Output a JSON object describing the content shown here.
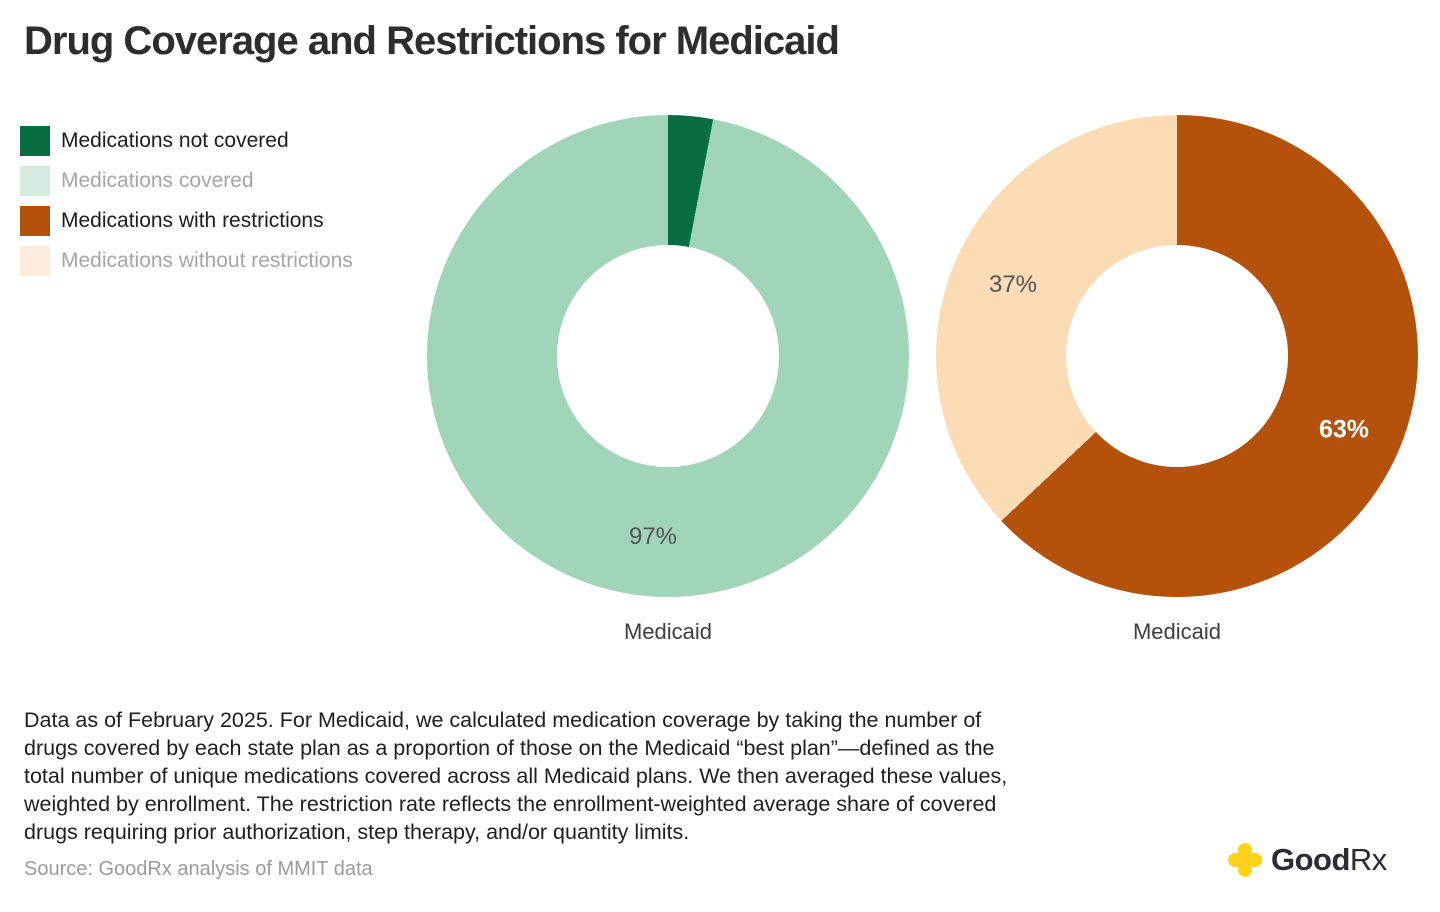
{
  "title": "Drug Coverage and Restrictions for Medicaid",
  "legend": {
    "items": [
      {
        "label": "Medications not covered",
        "swatch": "#086e41",
        "muted": false
      },
      {
        "label": "Medications covered",
        "swatch": "#d6ebdf",
        "muted": true
      },
      {
        "label": "Medications with restrictions",
        "swatch": "#b4510b",
        "muted": false
      },
      {
        "label": "Medications without restrictions",
        "swatch": "#fcecdc",
        "muted": true
      }
    ]
  },
  "chart_data": [
    {
      "type": "pie",
      "subtype": "donut",
      "axis_label": "Medicaid",
      "start_angle_deg": 0,
      "direction": "clockwise",
      "slices": [
        {
          "name": "Medications not covered",
          "value": 3,
          "color": "#086e41",
          "label": ""
        },
        {
          "name": "Medications covered",
          "value": 97,
          "color": "#a1d5ba",
          "label": "97%"
        }
      ]
    },
    {
      "type": "pie",
      "subtype": "donut",
      "axis_label": "Medicaid",
      "start_angle_deg": 0,
      "direction": "clockwise",
      "slices": [
        {
          "name": "Medications with restrictions",
          "value": 63,
          "color": "#b4510b",
          "label": "63%"
        },
        {
          "name": "Medications without restrictions",
          "value": 37,
          "color": "#fbdcb5",
          "label": "37%"
        }
      ]
    }
  ],
  "footnote": {
    "lines": [
      "Data as of February 2025. For Medicaid, we calculated medication coverage by taking the number of",
      "drugs covered by each state plan as a proportion of those on the Medicaid “best plan”—defined as the",
      "total number of unique medications covered across all Medicaid plans. We then averaged these values,",
      "weighted by enrollment. The restriction rate reflects the enrollment-weighted average share of covered",
      "drugs requiring prior authorization, step therapy, and/or quantity limits."
    ]
  },
  "source": "Source: GoodRx analysis of MMIT data",
  "logo": {
    "prefix": "Good",
    "suffix": "Rx"
  },
  "colors": {
    "background": "#ffffff",
    "title_text": "#2d2d2d",
    "legend_text": "#1d1d1d",
    "legend_muted_text": "#a6a6a6",
    "pct_label_dark": "#535353",
    "pct_label_light": "#ffffff",
    "axis_label": "#3e3e3e",
    "footnote_text": "#1f1f1f",
    "source_text": "#9c9c9c",
    "logo_text": "#2c2c33",
    "logo_yellow": "#fdd218"
  }
}
